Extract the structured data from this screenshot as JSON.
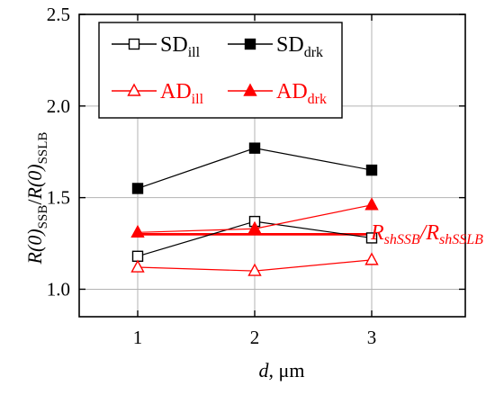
{
  "chart_data": {
    "type": "line",
    "x_tick_labels": [
      "1",
      "2",
      "3"
    ],
    "y_tick_labels": [
      "1.0",
      "1.5",
      "2.0",
      "2.5"
    ],
    "xlim": [
      0.5,
      3.8
    ],
    "ylim": [
      0.85,
      2.5
    ],
    "grid": true,
    "legend_placement": "top-left",
    "xlabel": {
      "main": "d",
      "rest": ", μm"
    },
    "ylabel": {
      "part1": "R(0)",
      "sub1": "SSB",
      "slash": "/",
      "part2": "R(0)",
      "sub2": "SSLB"
    },
    "series": [
      {
        "name": "SDill",
        "legend": {
          "main": "SD",
          "sub": "ill"
        },
        "x": [
          1,
          2,
          3
        ],
        "y": [
          1.18,
          1.37,
          1.28
        ],
        "color": "#000000",
        "marker": "square",
        "filled": false
      },
      {
        "name": "SDdrk",
        "legend": {
          "main": "SD",
          "sub": "drk"
        },
        "x": [
          1,
          2,
          3
        ],
        "y": [
          1.55,
          1.77,
          1.65
        ],
        "color": "#000000",
        "marker": "square",
        "filled": true
      },
      {
        "name": "ADill",
        "legend": {
          "main": "AD",
          "sub": "ill"
        },
        "x": [
          1,
          2,
          3
        ],
        "y": [
          1.12,
          1.1,
          1.16
        ],
        "color": "#ff0000",
        "marker": "triangle",
        "filled": false
      },
      {
        "name": "ADdrk",
        "legend": {
          "main": "AD",
          "sub": "drk"
        },
        "x": [
          1,
          2,
          3
        ],
        "y": [
          1.31,
          1.33,
          1.46
        ],
        "color": "#ff0000",
        "marker": "triangle",
        "filled": true
      }
    ],
    "reference_line": {
      "x_start": 1,
      "x_end": 3,
      "y": 1.3,
      "color": "#ff0000",
      "label": {
        "r1": "R",
        "s1": "shSSB",
        "slash": "/",
        "r2": "R",
        "s2": "shSSLB"
      }
    }
  }
}
